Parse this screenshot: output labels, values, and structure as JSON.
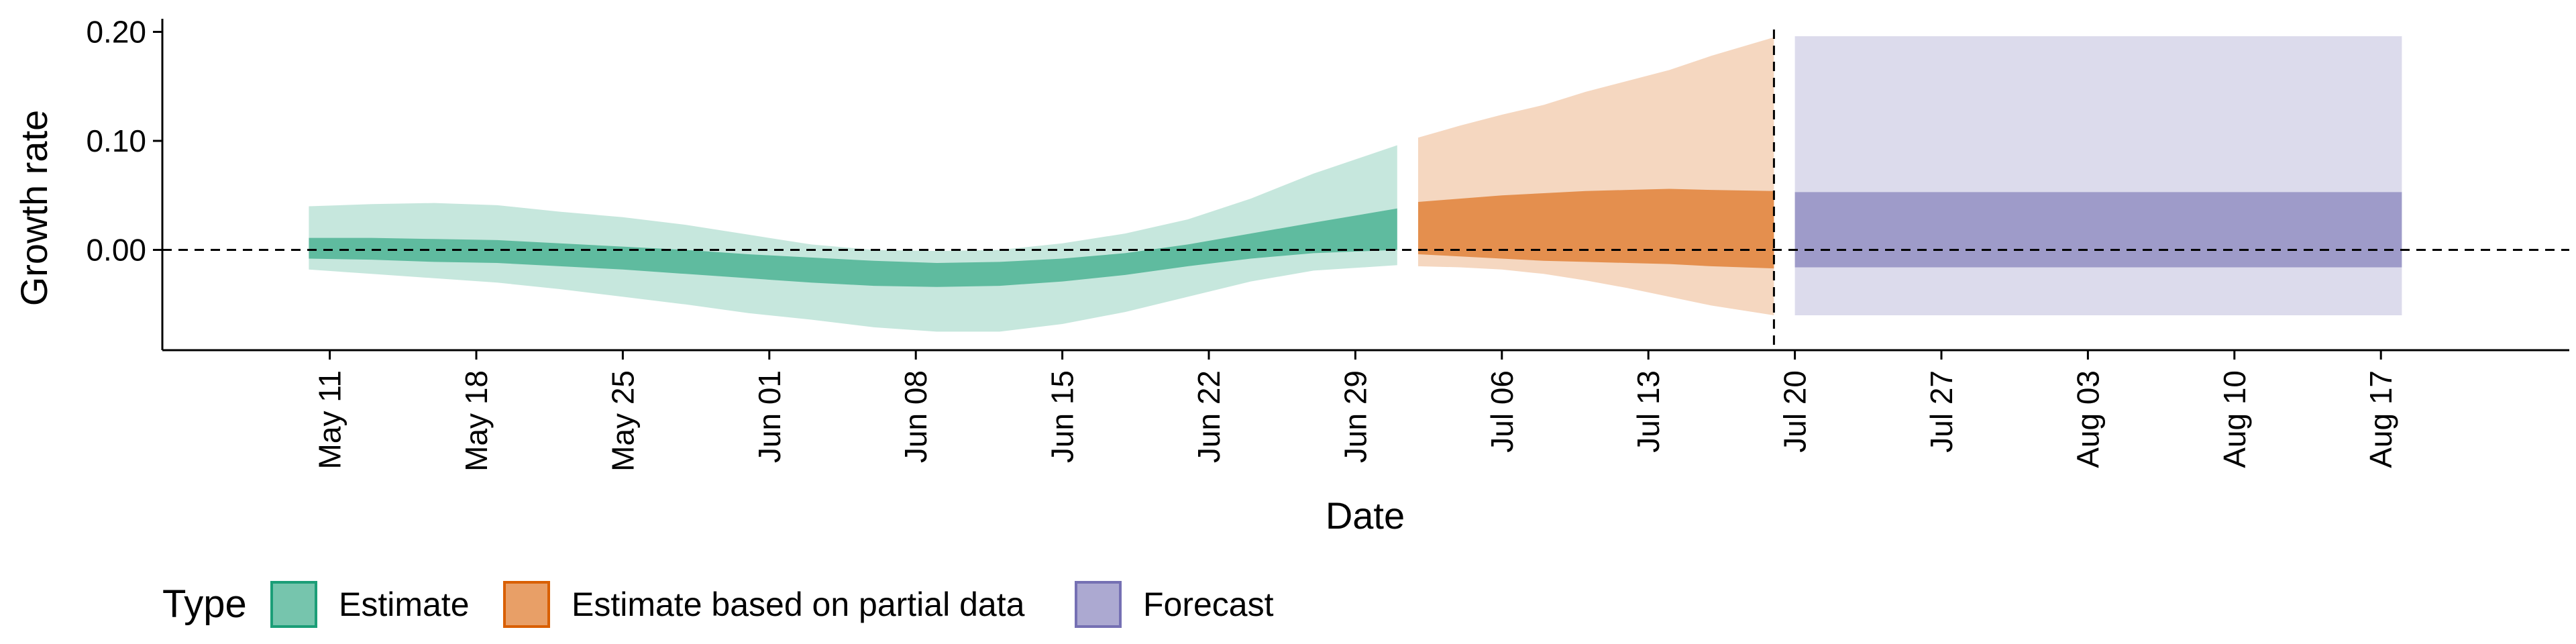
{
  "chart_data": {
    "type": "area",
    "title": "",
    "xlabel": "Date",
    "ylabel": "Growth rate",
    "x_axis": {
      "type": "date",
      "range": [
        "2020-05-03",
        "2020-08-26"
      ],
      "ticks": [
        {
          "date": "2020-05-11",
          "label": "May 11"
        },
        {
          "date": "2020-05-18",
          "label": "May 18"
        },
        {
          "date": "2020-05-25",
          "label": "May 25"
        },
        {
          "date": "2020-06-01",
          "label": "Jun 01"
        },
        {
          "date": "2020-06-08",
          "label": "Jun 08"
        },
        {
          "date": "2020-06-15",
          "label": "Jun 15"
        },
        {
          "date": "2020-06-22",
          "label": "Jun 22"
        },
        {
          "date": "2020-06-29",
          "label": "Jun 29"
        },
        {
          "date": "2020-07-06",
          "label": "Jul 06"
        },
        {
          "date": "2020-07-13",
          "label": "Jul 13"
        },
        {
          "date": "2020-07-20",
          "label": "Jul 20"
        },
        {
          "date": "2020-07-27",
          "label": "Jul 27"
        },
        {
          "date": "2020-08-03",
          "label": "Aug 03"
        },
        {
          "date": "2020-08-10",
          "label": "Aug 10"
        },
        {
          "date": "2020-08-17",
          "label": "Aug 17"
        }
      ]
    },
    "y_axis": {
      "range": [
        -0.092,
        0.212
      ],
      "ticks": [
        {
          "value": 0.0,
          "label": "0.00"
        },
        {
          "value": 0.1,
          "label": "0.10"
        },
        {
          "value": 0.2,
          "label": "0.20"
        }
      ]
    },
    "reference_lines": [
      {
        "axis": "y",
        "value": 0,
        "style": "dashed"
      },
      {
        "axis": "x",
        "date": "2020-07-19",
        "style": "dashed"
      }
    ],
    "legend": {
      "title": "Type",
      "placement": "bottom-left",
      "entries": [
        {
          "label": "Estimate",
          "color": "#1b9e77"
        },
        {
          "label": "Estimate based on partial data",
          "color": "#d95f02"
        },
        {
          "label": "Forecast",
          "color": "#7570b3"
        }
      ]
    },
    "series": [
      {
        "name": "Estimate",
        "fill": "#1b9e77",
        "dates": [
          "2020-05-10",
          "2020-05-13",
          "2020-05-16",
          "2020-05-19",
          "2020-05-22",
          "2020-05-25",
          "2020-05-28",
          "2020-05-31",
          "2020-06-03",
          "2020-06-06",
          "2020-06-09",
          "2020-06-12",
          "2020-06-15",
          "2020-06-18",
          "2020-06-21",
          "2020-06-24",
          "2020-06-27",
          "2020-07-01"
        ],
        "outer_upper": [
          0.04,
          0.042,
          0.043,
          0.041,
          0.035,
          0.03,
          0.023,
          0.014,
          0.005,
          0.0,
          -0.001,
          0.0,
          0.006,
          0.015,
          0.028,
          0.047,
          0.07,
          0.096
        ],
        "outer_lower": [
          -0.018,
          -0.022,
          -0.026,
          -0.03,
          -0.036,
          -0.043,
          -0.05,
          -0.058,
          -0.064,
          -0.071,
          -0.075,
          -0.075,
          -0.068,
          -0.057,
          -0.043,
          -0.029,
          -0.019,
          -0.014
        ],
        "inner_upper": [
          0.011,
          0.011,
          0.01,
          0.009,
          0.006,
          0.003,
          0.0,
          -0.004,
          -0.007,
          -0.01,
          -0.012,
          -0.011,
          -0.008,
          -0.003,
          0.005,
          0.015,
          0.025,
          0.038
        ],
        "inner_lower": [
          -0.008,
          -0.009,
          -0.011,
          -0.012,
          -0.015,
          -0.018,
          -0.022,
          -0.026,
          -0.03,
          -0.033,
          -0.034,
          -0.033,
          -0.029,
          -0.023,
          -0.015,
          -0.008,
          -0.003,
          0.0
        ]
      },
      {
        "name": "Estimate based on partial data",
        "fill": "#d95f02",
        "dates": [
          "2020-07-02",
          "2020-07-04",
          "2020-07-06",
          "2020-07-08",
          "2020-07-10",
          "2020-07-12",
          "2020-07-14",
          "2020-07-16",
          "2020-07-19"
        ],
        "outer_upper": [
          0.103,
          0.114,
          0.124,
          0.133,
          0.145,
          0.155,
          0.165,
          0.178,
          0.195
        ],
        "outer_lower": [
          -0.015,
          -0.016,
          -0.018,
          -0.022,
          -0.028,
          -0.035,
          -0.043,
          -0.051,
          -0.06
        ],
        "inner_upper": [
          0.044,
          0.047,
          0.05,
          0.052,
          0.054,
          0.055,
          0.056,
          0.055,
          0.054
        ],
        "inner_lower": [
          -0.004,
          -0.006,
          -0.008,
          -0.01,
          -0.011,
          -0.012,
          -0.013,
          -0.015,
          -0.017
        ]
      },
      {
        "name": "Forecast",
        "fill": "#7570b3",
        "dates": [
          "2020-07-20",
          "2020-08-18"
        ],
        "outer_upper": [
          0.196,
          0.196
        ],
        "outer_lower": [
          -0.06,
          -0.06
        ],
        "inner_upper": [
          0.053,
          0.053
        ],
        "inner_lower": [
          -0.016,
          -0.016
        ]
      }
    ]
  }
}
